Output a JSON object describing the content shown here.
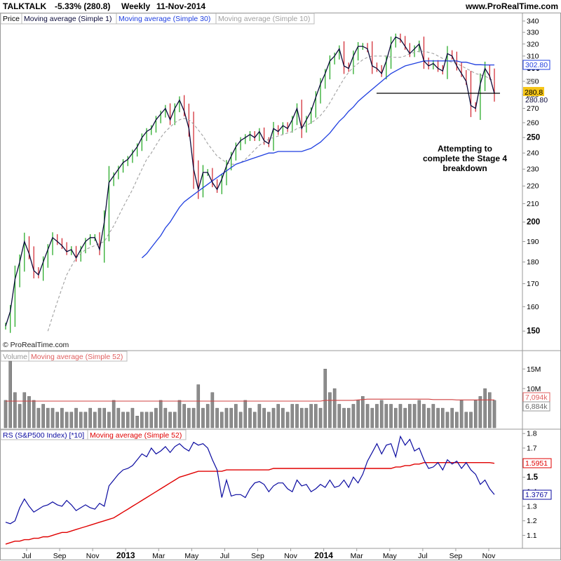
{
  "header": {
    "symbol": "TALKTALK",
    "change": "-5.33% (280.8)",
    "period": "Weekly",
    "date": "11-Nov-2014",
    "site": "www.ProRealTime.com"
  },
  "price_panel": {
    "legend": [
      "Price",
      "Moving average (Simple 1)",
      "Moving average (Simple 30)",
      "Moving average (Simple 10)"
    ],
    "copyright": "© ProRealTime.com",
    "annotation": [
      "Attempting to",
      "complete the Stage 4",
      "breakdown"
    ],
    "tag_ma30": "302.80",
    "tag_ma10": "290",
    "tag_last": "280.8",
    "tag_ma1": "280.80"
  },
  "volume_panel": {
    "legend": [
      "Volume",
      "Moving average (Simple 52)"
    ],
    "tag_ma": "7,094k",
    "tag_last": "6,884k"
  },
  "rs_panel": {
    "legend": [
      "RS (S&P500 Index) [*10]",
      "Moving average (Simple 52)"
    ],
    "tag_ma": "1.5951",
    "tag_last": "1.3767"
  },
  "colors": {
    "up_bar": "#1aa51a",
    "down_bar": "#d0202a",
    "ma1": "#0a0a3a",
    "ma30": "#1f3fe0",
    "ma10": "#a0a0a0",
    "volume_bar": "#8c8c8c",
    "rs_line": "#0a0aa0",
    "rs_ma": "#e00000",
    "last_tag": "#f5c518"
  },
  "chart_data": [
    {
      "type": "line",
      "title": "TALKTALK Weekly",
      "y_scale": "log",
      "ylim": [
        143,
        340
      ],
      "yticks": [
        150,
        160,
        170,
        180,
        190,
        200,
        210,
        220,
        230,
        240,
        250,
        260,
        270,
        280,
        290,
        300,
        310,
        320,
        330,
        340
      ],
      "x_labels": [
        "Jul",
        "Sep",
        "Nov",
        "2013",
        "Mar",
        "May",
        "Jul",
        "Sep",
        "Nov",
        "2014",
        "Mar",
        "May",
        "Jul",
        "Sep",
        "Nov"
      ],
      "support_line": 281,
      "series": [
        {
          "name": "Moving average (Simple 1)",
          "values": [
            152,
            158,
            172,
            180,
            190,
            184,
            176,
            174,
            180,
            186,
            192,
            190,
            188,
            185,
            186,
            182,
            186,
            190,
            192,
            192,
            186,
            200,
            222,
            226,
            230,
            234,
            236,
            240,
            244,
            250,
            254,
            256,
            262,
            266,
            270,
            262,
            270,
            276,
            268,
            256,
            230,
            218,
            228,
            228,
            222,
            218,
            224,
            232,
            238,
            244,
            248,
            250,
            252,
            250,
            254,
            248,
            246,
            256,
            254,
            258,
            256,
            262,
            270,
            256,
            262,
            268,
            278,
            288,
            296,
            306,
            310,
            316,
            302,
            300,
            310,
            318,
            318,
            316,
            302,
            300,
            296,
            306,
            320,
            326,
            324,
            318,
            312,
            316,
            320,
            306,
            302,
            304,
            300,
            298,
            312,
            310,
            302,
            296,
            290,
            272,
            270,
            288,
            300,
            294,
            280.8
          ]
        },
        {
          "name": "Moving average (Simple 30)",
          "values": [
            null,
            null,
            null,
            null,
            null,
            null,
            null,
            null,
            null,
            null,
            null,
            null,
            null,
            null,
            null,
            null,
            null,
            null,
            null,
            null,
            null,
            null,
            null,
            null,
            null,
            null,
            null,
            null,
            null,
            182,
            184,
            187,
            190,
            193,
            197,
            200,
            204,
            208,
            211,
            213,
            215,
            217,
            219,
            221,
            223,
            225,
            227,
            229,
            231,
            233,
            234,
            235,
            236,
            237,
            238,
            239,
            240,
            240,
            241,
            241,
            241,
            241,
            241,
            241,
            242,
            243,
            245,
            247,
            250,
            253,
            257,
            261,
            264,
            268,
            271,
            275,
            278,
            281,
            284,
            287,
            290,
            293,
            296,
            298,
            300,
            302,
            303,
            304,
            305,
            306,
            306,
            306,
            306,
            306,
            306,
            306,
            306,
            305,
            305,
            304,
            303,
            303,
            302.8,
            302.8,
            302.8
          ]
        },
        {
          "name": "Moving average (Simple 10)",
          "values": [
            null,
            null,
            null,
            null,
            null,
            null,
            null,
            null,
            null,
            150,
            156,
            162,
            168,
            174,
            178,
            182,
            184,
            186,
            187,
            188,
            189,
            190,
            194,
            198,
            203,
            208,
            213,
            218,
            224,
            230,
            236,
            240,
            245,
            250,
            254,
            257,
            260,
            262,
            263,
            262,
            259,
            255,
            251,
            246,
            242,
            238,
            236,
            234,
            233,
            233,
            234,
            236,
            239,
            242,
            245,
            247,
            249,
            250,
            251,
            252,
            253,
            254,
            256,
            257,
            258,
            260,
            262,
            265,
            269,
            274,
            280,
            286,
            292,
            297,
            301,
            304,
            307,
            309,
            310,
            310,
            310,
            310,
            309,
            309,
            309,
            310,
            312,
            313,
            314,
            314,
            313,
            312,
            310,
            308,
            306,
            305,
            304,
            302,
            300,
            298,
            296,
            295,
            294,
            292,
            290
          ]
        }
      ]
    },
    {
      "type": "bar",
      "title": "Volume",
      "ylim": [
        0,
        17000000
      ],
      "yticks_labels": [
        "10M",
        "15M"
      ],
      "series": [
        {
          "name": "Volume",
          "values": [
            7,
            17,
            9,
            6,
            9,
            8,
            7,
            5,
            6,
            5,
            5,
            4,
            5,
            4,
            4,
            5,
            4,
            4,
            5,
            4,
            5,
            5,
            4,
            7,
            5,
            4,
            4,
            5,
            3,
            4,
            4,
            4,
            5,
            7,
            5,
            4,
            4,
            7,
            6,
            5,
            5,
            11,
            5,
            6,
            9,
            5,
            4,
            5,
            5,
            6,
            4,
            7,
            5,
            4,
            6,
            5,
            4,
            5,
            6,
            5,
            4,
            6,
            6,
            5,
            5,
            6,
            6,
            5,
            15,
            9,
            10,
            6,
            5,
            5,
            6,
            7,
            8,
            6,
            5,
            6,
            7,
            6,
            6,
            5,
            6,
            5,
            6,
            6,
            7,
            6,
            5,
            6,
            5,
            5,
            4,
            5,
            4,
            7,
            4,
            4,
            7,
            8,
            10,
            9,
            7
          ]
        },
        {
          "name": "Moving average (Simple 52)",
          "values": [
            6.8,
            6.8,
            6.8,
            6.8,
            6.8,
            6.8,
            6.8,
            6.8,
            6.8,
            6.8,
            6.8,
            6.8,
            6.8,
            6.8,
            6.8,
            6.8,
            6.8,
            6.8,
            6.8,
            6.8,
            6.8,
            6.8,
            6.8,
            6.8,
            6.8,
            6.8,
            6.8,
            6.8,
            6.8,
            6.8,
            6.8,
            6.8,
            6.8,
            6.8,
            6.8,
            6.8,
            6.8,
            6.8,
            6.8,
            6.8,
            6.8,
            6.8,
            6.8,
            6.8,
            6.8,
            6.8,
            6.8,
            6.8,
            6.8,
            6.8,
            6.8,
            6.8,
            6.8,
            6.8,
            6.8,
            6.8,
            6.8,
            6.8,
            6.8,
            6.8,
            6.8,
            6.8,
            6.8,
            6.8,
            6.8,
            6.8,
            6.8,
            6.8,
            7.0,
            7.0,
            7.0,
            7.0,
            7.0,
            7.0,
            7.0,
            7.1,
            7.2,
            7.3,
            7.3,
            7.3,
            7.3,
            7.3,
            7.3,
            7.3,
            7.3,
            7.3,
            7.3,
            7.3,
            7.3,
            7.3,
            7.3,
            7.2,
            7.2,
            7.2,
            7.2,
            7.2,
            7.1,
            7.1,
            7.1,
            7.1,
            7.1,
            7.1,
            7.1,
            7.1,
            7.1
          ]
        }
      ]
    },
    {
      "type": "line",
      "title": "RS (S&P500 Index) [*10]",
      "ylim": [
        1.02,
        1.83
      ],
      "yticks": [
        1.1,
        1.2,
        1.3,
        1.4,
        1.5,
        1.6,
        1.7,
        1.8
      ],
      "series": [
        {
          "name": "RS (S&P500 Index) [*10]",
          "values": [
            1.19,
            1.18,
            1.2,
            1.29,
            1.35,
            1.3,
            1.26,
            1.28,
            1.3,
            1.31,
            1.33,
            1.31,
            1.3,
            1.34,
            1.31,
            1.27,
            1.29,
            1.31,
            1.29,
            1.28,
            1.32,
            1.3,
            1.44,
            1.48,
            1.52,
            1.55,
            1.56,
            1.58,
            1.62,
            1.66,
            1.64,
            1.7,
            1.66,
            1.68,
            1.71,
            1.67,
            1.71,
            1.73,
            1.7,
            1.68,
            1.74,
            1.72,
            1.73,
            1.7,
            1.62,
            1.55,
            1.36,
            1.48,
            1.37,
            1.38,
            1.38,
            1.36,
            1.42,
            1.46,
            1.47,
            1.45,
            1.4,
            1.44,
            1.46,
            1.46,
            1.42,
            1.4,
            1.48,
            1.44,
            1.45,
            1.4,
            1.42,
            1.45,
            1.43,
            1.48,
            1.43,
            1.44,
            1.48,
            1.43,
            1.5,
            1.46,
            1.52,
            1.61,
            1.67,
            1.73,
            1.66,
            1.72,
            1.73,
            1.64,
            1.78,
            1.72,
            1.76,
            1.68,
            1.7,
            1.62,
            1.56,
            1.57,
            1.6,
            1.55,
            1.62,
            1.59,
            1.61,
            1.56,
            1.6,
            1.55,
            1.52,
            1.45,
            1.48,
            1.42,
            1.38
          ]
        },
        {
          "name": "Moving average (Simple 52)",
          "values": [
            1.04,
            1.05,
            1.06,
            1.06,
            1.07,
            1.07,
            1.08,
            1.08,
            1.09,
            1.09,
            1.1,
            1.11,
            1.12,
            1.12,
            1.13,
            1.14,
            1.15,
            1.16,
            1.17,
            1.18,
            1.19,
            1.2,
            1.21,
            1.22,
            1.24,
            1.26,
            1.28,
            1.3,
            1.32,
            1.34,
            1.36,
            1.38,
            1.4,
            1.42,
            1.44,
            1.46,
            1.48,
            1.5,
            1.51,
            1.52,
            1.53,
            1.54,
            1.54,
            1.54,
            1.54,
            1.54,
            1.54,
            1.55,
            1.55,
            1.55,
            1.55,
            1.55,
            1.55,
            1.55,
            1.55,
            1.55,
            1.55,
            1.56,
            1.56,
            1.56,
            1.56,
            1.56,
            1.56,
            1.56,
            1.56,
            1.56,
            1.56,
            1.56,
            1.56,
            1.56,
            1.56,
            1.56,
            1.56,
            1.56,
            1.56,
            1.56,
            1.56,
            1.56,
            1.56,
            1.56,
            1.56,
            1.56,
            1.56,
            1.57,
            1.57,
            1.58,
            1.58,
            1.59,
            1.59,
            1.6,
            1.6,
            1.6,
            1.6,
            1.6,
            1.6,
            1.6,
            1.6,
            1.6,
            1.6,
            1.6,
            1.6,
            1.6,
            1.6,
            1.6,
            1.5951
          ]
        }
      ]
    }
  ]
}
